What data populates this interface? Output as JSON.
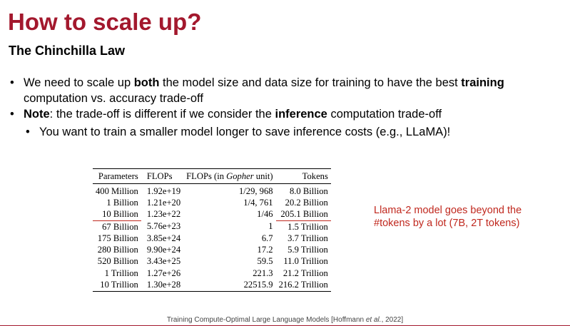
{
  "header": {
    "title": "How to scale up?",
    "subtitle": "The Chinchilla Law"
  },
  "bullets": [
    {
      "level": 1,
      "runs": [
        {
          "text": "We need to scale up "
        },
        {
          "text": "both",
          "bold": true
        },
        {
          "text": " the model size and data size for training to have the best "
        },
        {
          "text": "training",
          "bold": true
        },
        {
          "text": " computation vs. accuracy trade-off"
        }
      ]
    },
    {
      "level": 1,
      "runs": [
        {
          "text": "Note",
          "bold": true
        },
        {
          "text": ": the trade-off is different if we consider the "
        },
        {
          "text": "inference",
          "bold": true
        },
        {
          "text": " computation trade-off"
        }
      ]
    },
    {
      "level": 2,
      "runs": [
        {
          "text": "You want to train a smaller model longer to save inference costs (e.g., LLaMA)!"
        }
      ]
    }
  ],
  "table": {
    "columns": [
      [
        {
          "text": "Parameters"
        }
      ],
      [
        {
          "text": "FLOPs"
        }
      ],
      [
        {
          "text": "FLOPs (in "
        },
        {
          "text": "Gopher",
          "italic": true
        },
        {
          "text": " unit)"
        }
      ],
      [
        {
          "text": "Tokens"
        }
      ]
    ],
    "rows": [
      [
        "400 Million",
        "1.92e+19",
        "1/29, 968",
        "8.0 Billion"
      ],
      [
        "1 Billion",
        "1.21e+20",
        "1/4, 761",
        "20.2 Billion"
      ],
      [
        "10 Billion",
        "1.23e+22",
        "1/46",
        "205.1 Billion"
      ],
      [
        "67 Billion",
        "5.76e+23",
        "1",
        "1.5 Trillion"
      ],
      [
        "175 Billion",
        "3.85e+24",
        "6.7",
        "3.7 Trillion"
      ],
      [
        "280 Billion",
        "9.90e+24",
        "17.2",
        "5.9 Trillion"
      ],
      [
        "520 Billion",
        "3.43e+25",
        "59.5",
        "11.0 Trillion"
      ],
      [
        "1 Trillion",
        "1.27e+26",
        "221.3",
        "21.2 Trillion"
      ],
      [
        "10 Trillion",
        "1.30e+28",
        "22515.9",
        "216.2 Trillion"
      ]
    ],
    "underlined": [
      [
        2,
        0
      ],
      [
        2,
        3
      ]
    ]
  },
  "annotation": "Llama-2 model goes beyond the #tokens by a lot (7B, 2T tokens)",
  "citation": [
    {
      "text": "Training Compute-Optimal Large Language Models [Hoffmann "
    },
    {
      "text": "et al.",
      "italic": true
    },
    {
      "text": ", 2022]"
    }
  ]
}
